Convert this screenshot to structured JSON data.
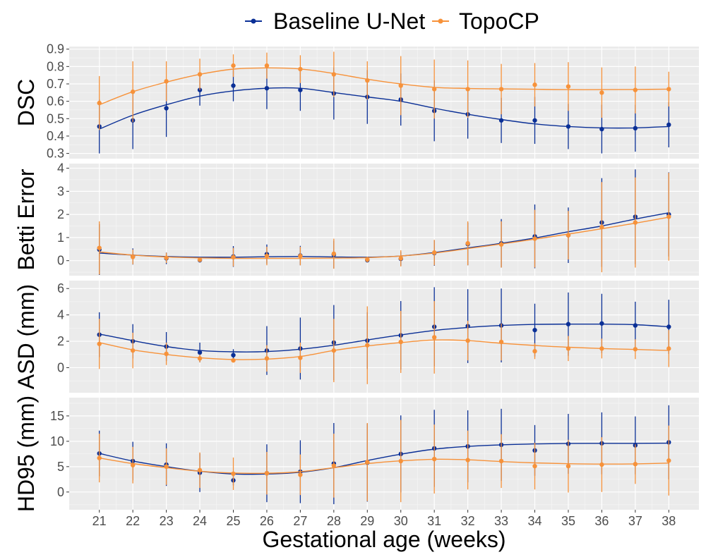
{
  "chart_data": {
    "type": "line",
    "xlabel": "Gestational age (weeks)",
    "x": [
      21,
      22,
      23,
      24,
      25,
      26,
      27,
      28,
      29,
      30,
      31,
      32,
      33,
      34,
      35,
      36,
      37,
      38
    ],
    "legend": {
      "placement": "top",
      "entries": [
        {
          "name": "Baseline U-Net",
          "color": "#0a2f96"
        },
        {
          "name": "TopoCP",
          "color": "#f7923a"
        }
      ]
    },
    "panels": [
      {
        "ylabel": "DSC",
        "ylim": [
          0.27,
          0.915
        ],
        "yticks": [
          0.3,
          0.4,
          0.5,
          0.6,
          0.7,
          0.8,
          0.9
        ],
        "ytick_labels": [
          "0.3",
          "0.4",
          "0.5",
          "0.6",
          "0.7",
          "0.8",
          "0.9"
        ],
        "series": [
          {
            "name": "Baseline U-Net",
            "points": [
              0.455,
              0.49,
              0.56,
              0.665,
              0.69,
              0.675,
              0.665,
              0.645,
              0.625,
              0.61,
              0.545,
              0.525,
              0.49,
              0.49,
              0.455,
              0.44,
              0.445,
              0.465
            ],
            "err": [
              0.155,
              0.165,
              0.165,
              0.09,
              0.09,
              0.12,
              0.12,
              0.15,
              0.155,
              0.15,
              0.175,
              0.14,
              0.13,
              0.135,
              0.13,
              0.14,
              0.135,
              0.13
            ],
            "smooth": [
              0.44,
              0.52,
              0.58,
              0.63,
              0.66,
              0.675,
              0.675,
              0.65,
              0.625,
              0.6,
              0.56,
              0.525,
              0.495,
              0.47,
              0.455,
              0.447,
              0.447,
              0.455
            ]
          },
          {
            "name": "TopoCP",
            "points": [
              0.59,
              0.655,
              0.715,
              0.755,
              0.805,
              0.805,
              0.785,
              0.755,
              0.72,
              0.69,
              0.67,
              0.67,
              0.67,
              0.695,
              0.685,
              0.65,
              0.665,
              0.67
            ],
            "err": [
              0.155,
              0.175,
              0.115,
              0.09,
              0.065,
              0.075,
              0.08,
              0.13,
              0.11,
              0.17,
              0.17,
              0.165,
              0.145,
              0.125,
              0.14,
              0.145,
              0.135,
              0.1
            ],
            "smooth": [
              0.58,
              0.655,
              0.71,
              0.755,
              0.785,
              0.792,
              0.786,
              0.76,
              0.727,
              0.7,
              0.68,
              0.674,
              0.671,
              0.669,
              0.667,
              0.667,
              0.668,
              0.67
            ]
          }
        ]
      },
      {
        "ylabel": "Betti Error",
        "ylim": [
          -0.65,
          4.2
        ],
        "yticks": [
          0,
          1,
          2,
          3,
          4
        ],
        "ytick_labels": [
          "0",
          "1",
          "2",
          "3",
          "4"
        ],
        "series": [
          {
            "name": "Baseline U-Net",
            "points": [
              0.48,
              0.18,
              0.1,
              0.02,
              0.18,
              0.28,
              0.22,
              0.26,
              0.02,
              0.08,
              0.33,
              0.72,
              0.75,
              1.05,
              1.1,
              1.65,
              1.9,
              2.0
            ],
            "err": [
              1.1,
              0.35,
              0.25,
              0.1,
              0.45,
              0.42,
              0.42,
              0.6,
              0.1,
              0.3,
              0.55,
              0.92,
              1.05,
              1.38,
              1.2,
              1.92,
              2.05,
              1.82
            ],
            "smooth": [
              0.33,
              0.24,
              0.18,
              0.15,
              0.15,
              0.17,
              0.18,
              0.16,
              0.15,
              0.2,
              0.35,
              0.55,
              0.75,
              0.98,
              1.25,
              1.5,
              1.8,
              2.07
            ]
          },
          {
            "name": "TopoCP",
            "points": [
              0.55,
              0.16,
              0.12,
              0.04,
              0.15,
              0.2,
              0.2,
              0.3,
              0.05,
              0.1,
              0.35,
              0.75,
              0.7,
              0.95,
              1.1,
              1.45,
              1.65,
              1.9
            ],
            "err": [
              1.15,
              0.32,
              0.22,
              0.1,
              0.4,
              0.4,
              0.4,
              0.65,
              0.12,
              0.35,
              0.55,
              0.95,
              1.0,
              1.25,
              1.05,
              1.95,
              1.95,
              1.9
            ],
            "smooth": [
              0.38,
              0.24,
              0.16,
              0.12,
              0.1,
              0.1,
              0.1,
              0.11,
              0.13,
              0.2,
              0.33,
              0.52,
              0.72,
              0.93,
              1.15,
              1.38,
              1.62,
              1.88
            ]
          }
        ]
      },
      {
        "ylabel": "ASD (mm)",
        "ylim": [
          -1.9,
          6.6
        ],
        "yticks": [
          0,
          2,
          4,
          6
        ],
        "ytick_labels": [
          "0",
          "2",
          "4",
          "6"
        ],
        "series": [
          {
            "name": "Baseline U-Net",
            "points": [
              2.5,
              2.0,
              1.6,
              1.15,
              0.95,
              1.3,
              1.45,
              1.9,
              2.05,
              2.45,
              3.1,
              3.15,
              3.2,
              2.85,
              3.3,
              3.35,
              3.2,
              3.1
            ],
            "err": [
              1.7,
              1.3,
              1.1,
              0.75,
              0.45,
              1.85,
              2.35,
              2.85,
              2.15,
              2.6,
              3.0,
              2.8,
              2.8,
              2.0,
              2.4,
              2.25,
              1.8,
              2.05
            ],
            "smooth": [
              2.55,
              2.05,
              1.6,
              1.3,
              1.2,
              1.22,
              1.4,
              1.7,
              2.1,
              2.48,
              2.82,
              3.05,
              3.2,
              3.28,
              3.3,
              3.3,
              3.26,
              3.1
            ]
          },
          {
            "name": "TopoCP",
            "points": [
              1.8,
              1.3,
              1.05,
              0.7,
              0.55,
              0.7,
              0.75,
              1.3,
              1.7,
              1.95,
              2.3,
              2.05,
              1.95,
              1.25,
              1.45,
              1.45,
              1.4,
              1.45
            ],
            "err": [
              1.9,
              1.35,
              0.85,
              0.3,
              0.15,
              1.0,
              1.15,
              2.4,
              2.95,
              2.35,
              2.75,
              1.5,
              1.4,
              0.6,
              0.95,
              0.75,
              0.75,
              1.4
            ],
            "smooth": [
              1.9,
              1.35,
              1.0,
              0.75,
              0.62,
              0.65,
              0.85,
              1.3,
              1.65,
              1.9,
              2.1,
              2.05,
              1.85,
              1.68,
              1.55,
              1.45,
              1.38,
              1.3
            ]
          }
        ]
      },
      {
        "ylabel": "HD95 (mm)",
        "ylim": [
          -3.5,
          18.6
        ],
        "yticks": [
          0,
          5,
          10,
          15
        ],
        "ytick_labels": [
          "0",
          "5",
          "10",
          "15"
        ],
        "series": [
          {
            "name": "Baseline U-Net",
            "points": [
              7.6,
              6.1,
              5.4,
              3.8,
              2.3,
              3.7,
              4.0,
              5.6,
              5.8,
              7.5,
              8.6,
              9.0,
              9.3,
              8.2,
              9.5,
              9.6,
              9.2,
              9.8
            ],
            "err": [
              4.5,
              3.8,
              4.2,
              3.8,
              1.0,
              5.7,
              6.2,
              8.0,
              7.7,
              7.6,
              7.6,
              7.1,
              7.1,
              5.0,
              5.9,
              6.1,
              5.7,
              7.3
            ],
            "smooth": [
              7.6,
              6.1,
              5.0,
              4.1,
              3.55,
              3.55,
              3.9,
              4.8,
              6.2,
              7.45,
              8.45,
              9.0,
              9.3,
              9.48,
              9.58,
              9.6,
              9.6,
              9.62
            ]
          },
          {
            "name": "TopoCP",
            "points": [
              6.7,
              5.3,
              5.0,
              4.3,
              3.6,
              3.7,
              3.4,
              5.2,
              5.9,
              6.1,
              6.5,
              6.3,
              6.1,
              5.1,
              5.1,
              5.4,
              5.5,
              6.2
            ],
            "err": [
              4.8,
              3.6,
              3.6,
              3.5,
              3.2,
              4.2,
              4.0,
              6.3,
              7.7,
              8.1,
              6.8,
              5.8,
              5.3,
              4.6,
              5.2,
              5.4,
              3.9,
              6.9
            ],
            "smooth": [
              6.7,
              5.6,
              4.8,
              4.1,
              3.75,
              3.7,
              4.0,
              4.8,
              5.6,
              6.15,
              6.45,
              6.35,
              6.0,
              5.75,
              5.58,
              5.5,
              5.55,
              5.7
            ]
          }
        ]
      }
    ]
  }
}
